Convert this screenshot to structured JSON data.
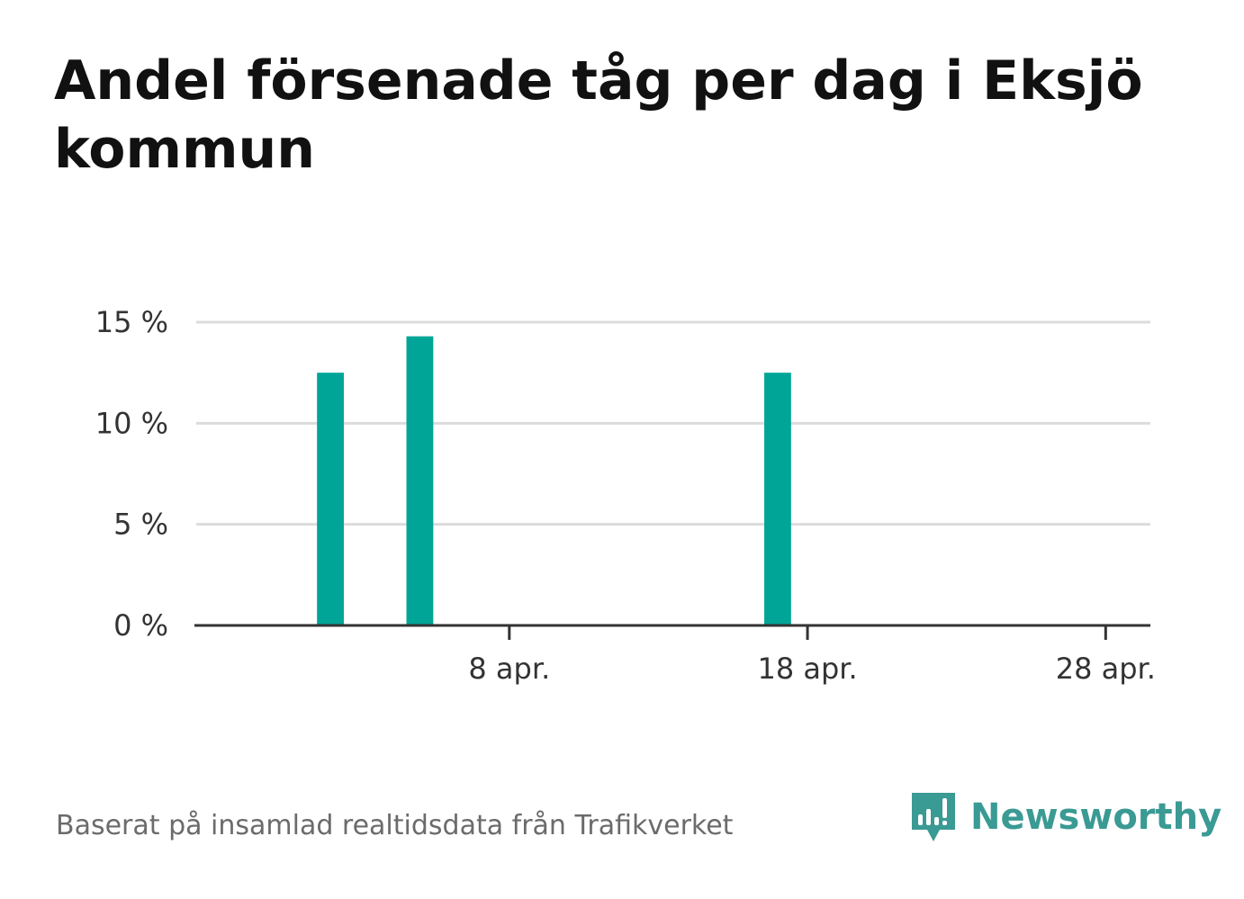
{
  "title": "Andel försenade tåg per dag i Eksjö kommun",
  "source": "Baserat på insamlad realtidsdata från Trafikverket",
  "brand": {
    "name": "Newsworthy",
    "logo_icon": "newsworthy-logo-icon",
    "color": "#3a9a94"
  },
  "chart_data": {
    "type": "bar",
    "x": [
      "2 apr.",
      "5 apr.",
      "17 apr."
    ],
    "values": [
      12.5,
      14.3,
      12.5
    ],
    "x_axis_start": "29 mars",
    "x_axis_end": "30 apr.",
    "x_ticks": [
      "8 apr.",
      "18 apr.",
      "28 apr."
    ],
    "y_ticks": [
      "0 %",
      "5 %",
      "10 %",
      "15 %"
    ],
    "y_tick_values": [
      0,
      5,
      10,
      15
    ],
    "ylim": [
      0,
      15
    ],
    "grid": true,
    "bar_color": "#00a597"
  }
}
